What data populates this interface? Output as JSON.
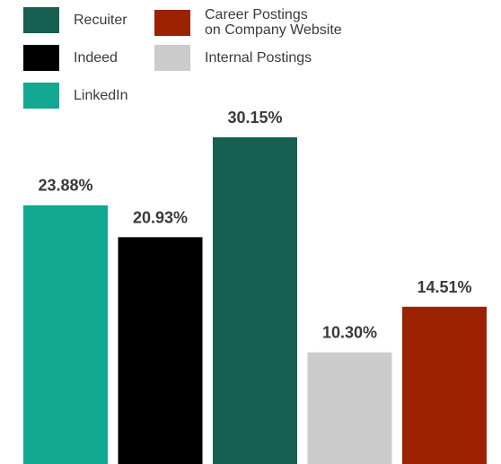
{
  "chart_data": {
    "type": "bar",
    "categories": [
      "LinkedIn",
      "Indeed",
      "Recuiter",
      "Internal Postings",
      "Career Postings\non Company Website"
    ],
    "values": [
      23.88,
      20.93,
      30.15,
      10.3,
      14.51
    ],
    "value_labels": [
      "23.88%",
      "20.93%",
      "30.15%",
      "10.30%",
      "14.51%"
    ],
    "colors": [
      "#13a892",
      "#000000",
      "#155f53",
      "#cccccc",
      "#9a2200"
    ],
    "title": "",
    "xlabel": "",
    "ylabel": "",
    "ylim": [
      0,
      30.15
    ],
    "grid": false,
    "legend_position": "top",
    "legend": [
      {
        "label": "Recuiter",
        "color": "#155f53"
      },
      {
        "label": "Career Postings\non Company Website",
        "color": "#9a2200"
      },
      {
        "label": "Indeed",
        "color": "#000000"
      },
      {
        "label": "Internal Postings",
        "color": "#cccccc"
      },
      {
        "label": "LinkedIn",
        "color": "#13a892"
      }
    ]
  }
}
